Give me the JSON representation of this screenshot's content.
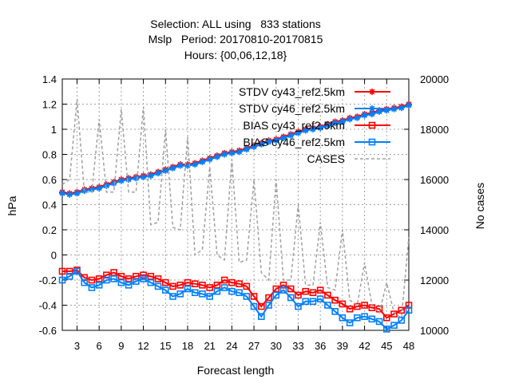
{
  "header": {
    "title_line1": "Selection: ALL using   833 stations",
    "title_line2": "Mslp   Period: 20170810-20170815",
    "title_line3": "Hours: {00,06,12,18}"
  },
  "chart_data": {
    "type": "line",
    "xlabel": "Forecast length",
    "ylabel": "hPa",
    "y2label": "No cases",
    "xlim": [
      1,
      48
    ],
    "ylim": [
      -0.6,
      1.4
    ],
    "y2lim": [
      10000,
      20000
    ],
    "xticks": [
      "3",
      "6",
      "9",
      "12",
      "15",
      "18",
      "21",
      "24",
      "27",
      "30",
      "33",
      "36",
      "39",
      "42",
      "45",
      "48"
    ],
    "yticks": [
      "1.4",
      "1.2",
      "1",
      "0.8",
      "0.6",
      "0.4",
      "0.2",
      "0",
      "-0.2",
      "-0.4",
      "-0.6"
    ],
    "y2ticks": [
      "20000",
      "18000",
      "16000",
      "14000",
      "12000",
      "10000"
    ],
    "grid": true,
    "legend_position": "top-right",
    "x": [
      1,
      2,
      3,
      4,
      5,
      6,
      7,
      8,
      9,
      10,
      11,
      12,
      13,
      14,
      15,
      16,
      17,
      18,
      19,
      20,
      21,
      22,
      23,
      24,
      25,
      26,
      27,
      28,
      29,
      30,
      31,
      32,
      33,
      34,
      35,
      36,
      37,
      38,
      39,
      40,
      41,
      42,
      43,
      44,
      45,
      46,
      47,
      48
    ],
    "series": [
      {
        "name": "STDV cy43_ref2.5km",
        "color": "#ff0000",
        "marker": "star",
        "axis": "y1",
        "values": [
          0.5,
          0.49,
          0.5,
          0.52,
          0.53,
          0.54,
          0.56,
          0.58,
          0.6,
          0.61,
          0.62,
          0.63,
          0.64,
          0.66,
          0.68,
          0.7,
          0.72,
          0.72,
          0.73,
          0.75,
          0.77,
          0.79,
          0.81,
          0.82,
          0.83,
          0.85,
          0.87,
          0.89,
          0.91,
          0.92,
          0.94,
          0.96,
          0.98,
          1.0,
          1.01,
          1.02,
          1.04,
          1.06,
          1.07,
          1.09,
          1.1,
          1.12,
          1.13,
          1.15,
          1.16,
          1.17,
          1.18,
          1.2
        ]
      },
      {
        "name": "STDV cy46_ref2.5km",
        "color": "#0080ff",
        "marker": "star",
        "axis": "y1",
        "values": [
          0.49,
          0.48,
          0.49,
          0.51,
          0.52,
          0.53,
          0.55,
          0.57,
          0.59,
          0.6,
          0.61,
          0.62,
          0.63,
          0.65,
          0.67,
          0.69,
          0.71,
          0.71,
          0.72,
          0.74,
          0.76,
          0.78,
          0.8,
          0.81,
          0.82,
          0.84,
          0.86,
          0.88,
          0.9,
          0.91,
          0.93,
          0.95,
          0.97,
          0.99,
          1.0,
          1.01,
          1.03,
          1.05,
          1.06,
          1.08,
          1.09,
          1.11,
          1.12,
          1.14,
          1.15,
          1.16,
          1.17,
          1.19
        ]
      },
      {
        "name": "BIAS cy43_ref2.5km",
        "color": "#ff0000",
        "marker": "square",
        "axis": "y1",
        "values": [
          -0.13,
          -0.13,
          -0.12,
          -0.18,
          -0.2,
          -0.19,
          -0.16,
          -0.14,
          -0.17,
          -0.19,
          -0.17,
          -0.16,
          -0.17,
          -0.19,
          -0.22,
          -0.25,
          -0.24,
          -0.22,
          -0.23,
          -0.24,
          -0.26,
          -0.24,
          -0.2,
          -0.22,
          -0.23,
          -0.25,
          -0.33,
          -0.41,
          -0.34,
          -0.27,
          -0.24,
          -0.27,
          -0.32,
          -0.29,
          -0.3,
          -0.28,
          -0.32,
          -0.36,
          -0.39,
          -0.43,
          -0.41,
          -0.4,
          -0.42,
          -0.43,
          -0.5,
          -0.47,
          -0.44,
          -0.4
        ]
      },
      {
        "name": "BIAS cy46_ref2.5km",
        "color": "#0080ff",
        "marker": "square",
        "axis": "y1",
        "values": [
          -0.2,
          -0.17,
          -0.13,
          -0.22,
          -0.26,
          -0.24,
          -0.2,
          -0.19,
          -0.22,
          -0.24,
          -0.21,
          -0.19,
          -0.22,
          -0.25,
          -0.28,
          -0.33,
          -0.31,
          -0.27,
          -0.3,
          -0.31,
          -0.33,
          -0.29,
          -0.26,
          -0.29,
          -0.3,
          -0.33,
          -0.41,
          -0.49,
          -0.4,
          -0.32,
          -0.28,
          -0.34,
          -0.41,
          -0.37,
          -0.37,
          -0.35,
          -0.4,
          -0.45,
          -0.5,
          -0.54,
          -0.5,
          -0.49,
          -0.51,
          -0.53,
          -0.59,
          -0.56,
          -0.52,
          -0.44
        ]
      },
      {
        "name": "CASES",
        "color": "#a0a0a0",
        "dashed": true,
        "axis": "y2",
        "values": [
          15800,
          16000,
          19200,
          15500,
          15500,
          18400,
          15500,
          15500,
          18800,
          15500,
          15500,
          18900,
          14200,
          14300,
          18000,
          14100,
          14000,
          17700,
          13000,
          13200,
          16500,
          13000,
          12800,
          16800,
          12700,
          12800,
          16000,
          12300,
          12000,
          16000,
          12000,
          12000,
          15000,
          11800,
          11800,
          14300,
          11700,
          11600,
          14000,
          11200,
          11000,
          12700,
          11000,
          10700,
          11900,
          10700,
          10500,
          13700
        ]
      }
    ]
  }
}
